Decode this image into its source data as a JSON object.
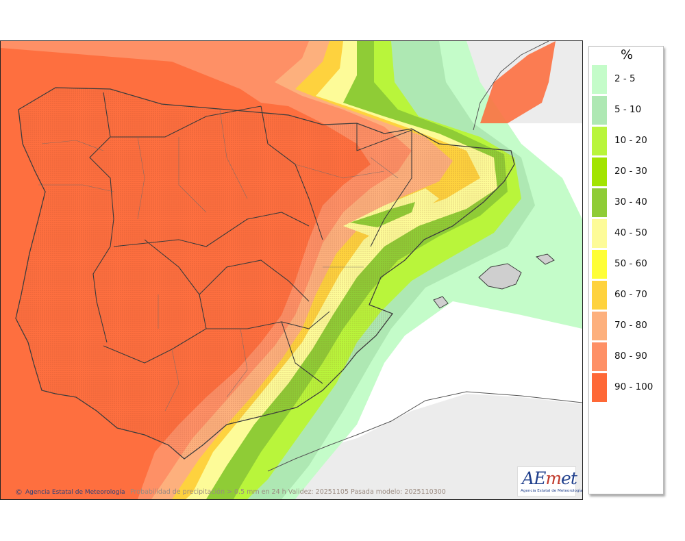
{
  "legend": {
    "unit": "%",
    "items": [
      {
        "label": "2 - 5",
        "color": "#c4fcc9"
      },
      {
        "label": "5 - 10",
        "color": "#aee8b3"
      },
      {
        "label": "10 - 20",
        "color": "#b9f53b"
      },
      {
        "label": "20 - 30",
        "color": "#a2e400"
      },
      {
        "label": "30 - 40",
        "color": "#8fcc36"
      },
      {
        "label": "40 - 50",
        "color": "#fdfb98"
      },
      {
        "label": "50 - 60",
        "color": "#fefe37"
      },
      {
        "label": "60 - 70",
        "color": "#fed23e"
      },
      {
        "label": "70 - 80",
        "color": "#fdb07d"
      },
      {
        "label": "80 - 90",
        "color": "#fe9066"
      },
      {
        "label": "90 - 100",
        "color": "#fe6837"
      }
    ]
  },
  "map": {
    "caption": "Probabilidad de precipitación > 0.5 mm en 24 h Validez: 20251105 Pasada modelo: 2025110300",
    "credit": "Agencia Estatal de Meteorología",
    "credit_symbol": "©"
  },
  "logo": {
    "mark_a": "A",
    "mark_e": "E",
    "mark_m": "m",
    "mark_et": "et",
    "subtitle": "Agencia Estatal de Meteorología"
  }
}
